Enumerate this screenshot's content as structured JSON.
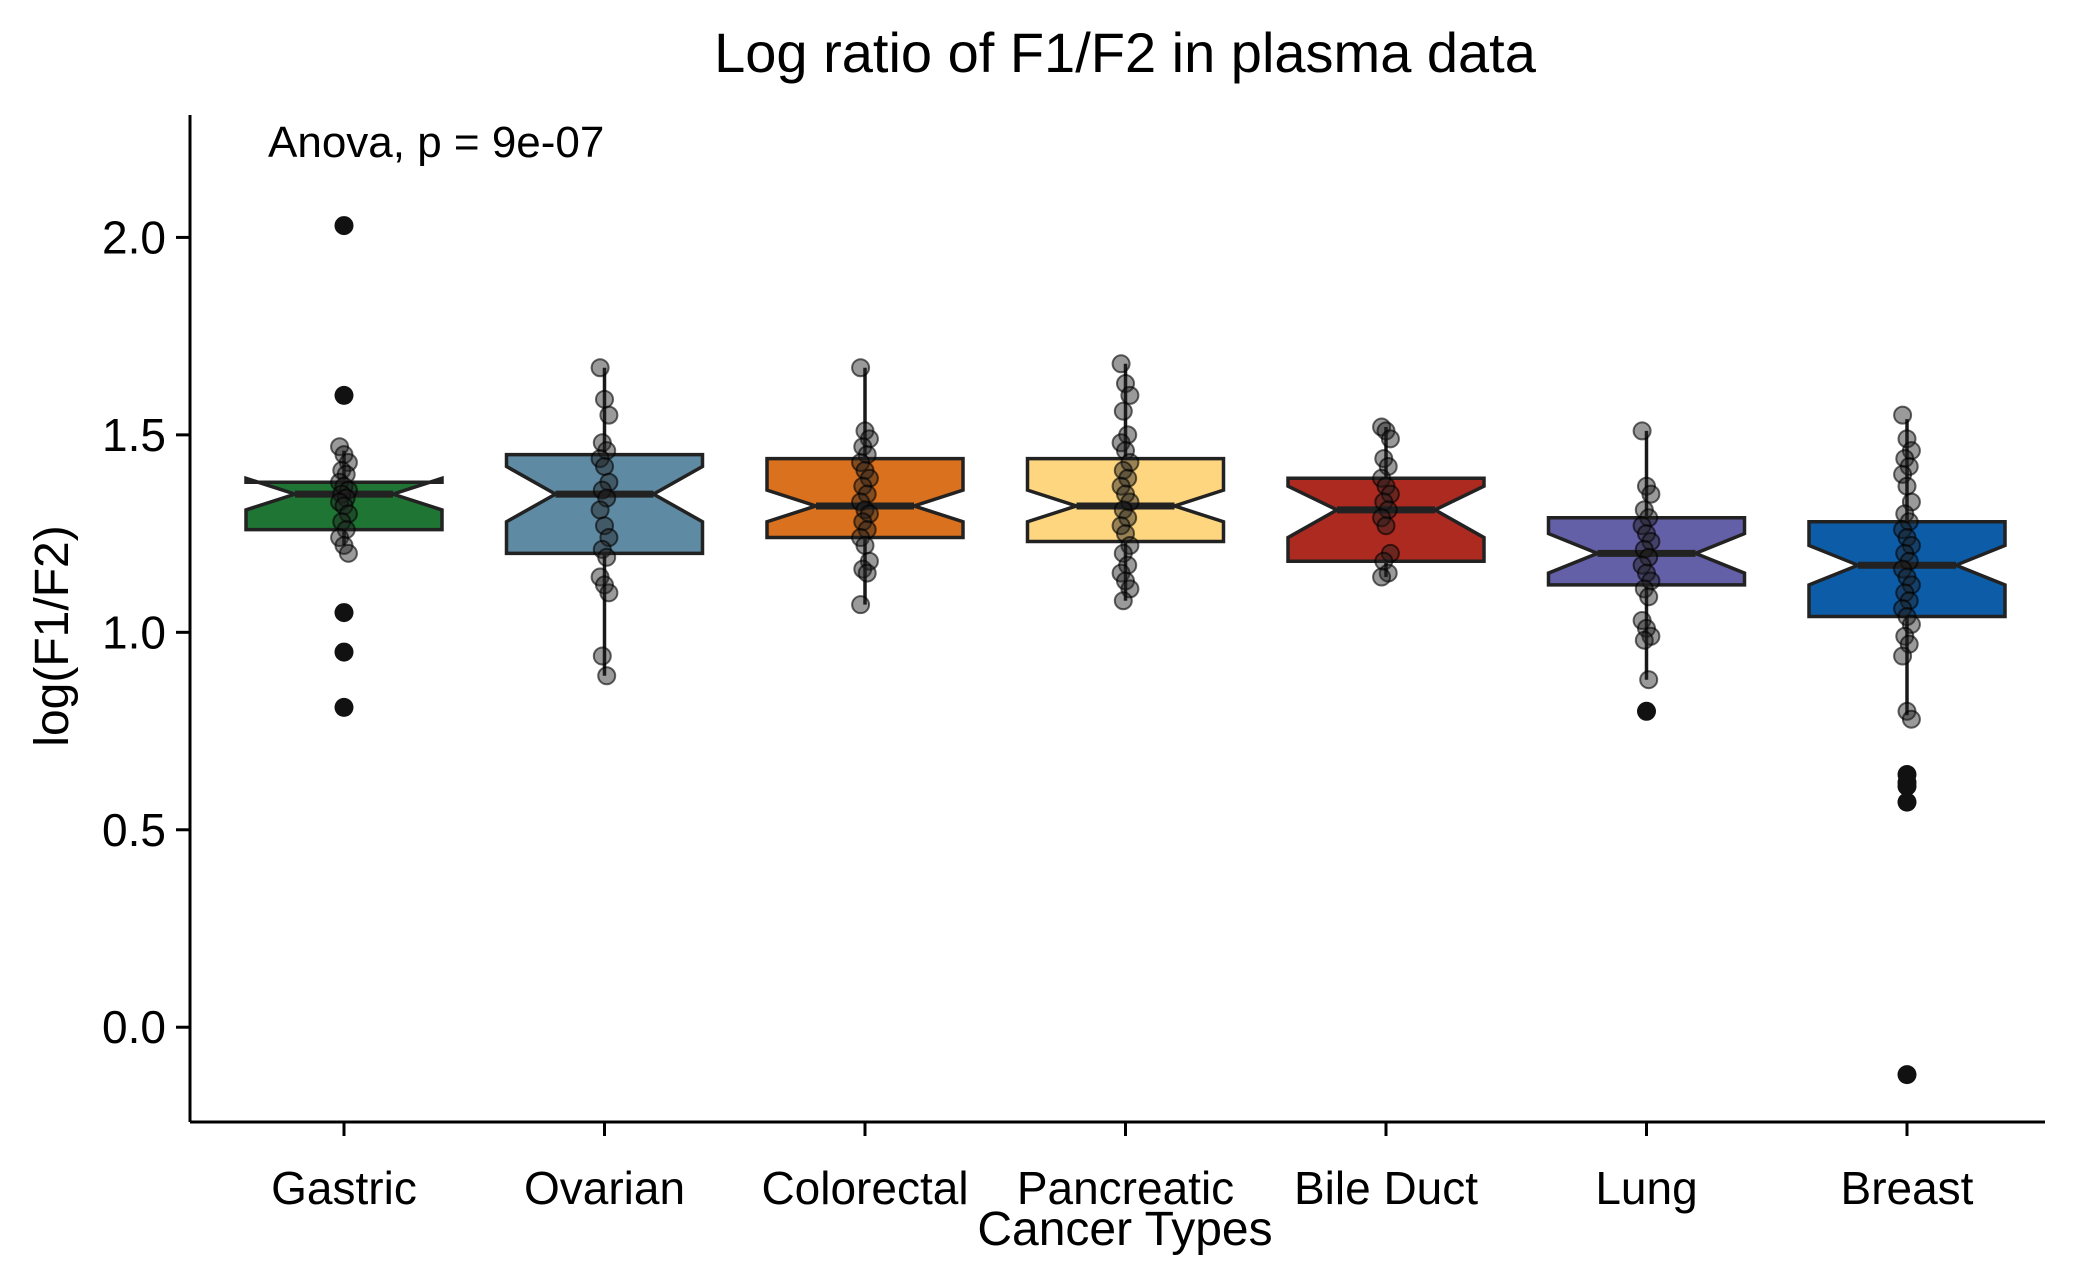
{
  "chart_data": {
    "type": "boxplot",
    "title": "Log ratio of F1/F2 in plasma data",
    "xlabel": "Cancer Types",
    "ylabel": "log(F1/F2)",
    "annotation": "Anova, p = 9e-07",
    "ylim": [
      -0.24,
      2.31
    ],
    "yticks": [
      0.0,
      0.5,
      1.0,
      1.5,
      2.0
    ],
    "ytick_labels": [
      "0.0",
      "0.5",
      "1.0",
      "1.5",
      "2.0"
    ],
    "categories": [
      "Gastric",
      "Ovarian",
      "Colorectal",
      "Pancreatic",
      "Bile Duct",
      "Lung",
      "Breast"
    ],
    "boxes": [
      {
        "name": "Gastric",
        "color": "#1e7534",
        "q1": 1.26,
        "median": 1.35,
        "q3": 1.38,
        "notch_low": 1.31,
        "notch_high": 1.39,
        "whisker_low": 1.22,
        "whisker_high": 1.46,
        "outliers": [
          2.03,
          1.6,
          1.05,
          0.95,
          0.81
        ],
        "points": [
          1.47,
          1.45,
          1.43,
          1.41,
          1.4,
          1.38,
          1.37,
          1.36,
          1.35,
          1.34,
          1.33,
          1.32,
          1.3,
          1.28,
          1.26,
          1.24,
          1.22,
          1.2
        ]
      },
      {
        "name": "Ovarian",
        "color": "#5f8aa3",
        "q1": 1.2,
        "median": 1.35,
        "q3": 1.45,
        "notch_low": 1.28,
        "notch_high": 1.42,
        "whisker_low": 0.89,
        "whisker_high": 1.67,
        "outliers": [],
        "points": [
          1.67,
          1.59,
          1.55,
          1.48,
          1.46,
          1.44,
          1.42,
          1.38,
          1.36,
          1.34,
          1.31,
          1.27,
          1.24,
          1.21,
          1.19,
          1.14,
          1.12,
          1.1,
          0.94,
          0.89
        ]
      },
      {
        "name": "Colorectal",
        "color": "#d9711e",
        "q1": 1.24,
        "median": 1.32,
        "q3": 1.44,
        "notch_low": 1.28,
        "notch_high": 1.36,
        "whisker_low": 1.07,
        "whisker_high": 1.67,
        "outliers": [],
        "points": [
          1.67,
          1.51,
          1.49,
          1.47,
          1.45,
          1.43,
          1.41,
          1.39,
          1.37,
          1.35,
          1.33,
          1.31,
          1.3,
          1.28,
          1.26,
          1.24,
          1.22,
          1.18,
          1.16,
          1.15,
          1.07
        ]
      },
      {
        "name": "Pancreatic",
        "color": "#fed680",
        "q1": 1.23,
        "median": 1.32,
        "q3": 1.44,
        "notch_low": 1.28,
        "notch_high": 1.36,
        "whisker_low": 1.08,
        "whisker_high": 1.68,
        "outliers": [],
        "points": [
          1.68,
          1.63,
          1.6,
          1.56,
          1.5,
          1.48,
          1.46,
          1.43,
          1.41,
          1.39,
          1.37,
          1.35,
          1.33,
          1.31,
          1.29,
          1.27,
          1.25,
          1.22,
          1.2,
          1.17,
          1.15,
          1.13,
          1.11,
          1.08
        ]
      },
      {
        "name": "Bile Duct",
        "color": "#ad2a20",
        "q1": 1.18,
        "median": 1.31,
        "q3": 1.39,
        "notch_low": 1.24,
        "notch_high": 1.37,
        "whisker_low": 1.14,
        "whisker_high": 1.52,
        "outliers": [],
        "points": [
          1.52,
          1.51,
          1.49,
          1.44,
          1.42,
          1.39,
          1.37,
          1.35,
          1.33,
          1.31,
          1.29,
          1.27,
          1.2,
          1.18,
          1.15,
          1.14
        ]
      },
      {
        "name": "Lung",
        "color": "#6460a7",
        "q1": 1.12,
        "median": 1.2,
        "q3": 1.29,
        "notch_low": 1.15,
        "notch_high": 1.25,
        "whisker_low": 0.88,
        "whisker_high": 1.51,
        "outliers": [
          0.8
        ],
        "points": [
          1.51,
          1.37,
          1.35,
          1.31,
          1.29,
          1.27,
          1.25,
          1.23,
          1.21,
          1.19,
          1.17,
          1.15,
          1.13,
          1.11,
          1.09,
          1.03,
          1.01,
          0.99,
          0.98,
          0.88
        ]
      },
      {
        "name": "Breast",
        "color": "#0c5ca8",
        "q1": 1.04,
        "median": 1.17,
        "q3": 1.28,
        "notch_low": 1.12,
        "notch_high": 1.22,
        "whisker_low": 0.79,
        "whisker_high": 1.54,
        "outliers": [
          0.64,
          0.62,
          0.61,
          0.57,
          -0.12
        ],
        "points": [
          1.55,
          1.49,
          1.46,
          1.44,
          1.42,
          1.4,
          1.37,
          1.33,
          1.3,
          1.28,
          1.26,
          1.24,
          1.22,
          1.2,
          1.18,
          1.16,
          1.14,
          1.12,
          1.1,
          1.08,
          1.06,
          1.04,
          1.02,
          0.99,
          0.97,
          0.94,
          0.8,
          0.78
        ]
      }
    ]
  }
}
